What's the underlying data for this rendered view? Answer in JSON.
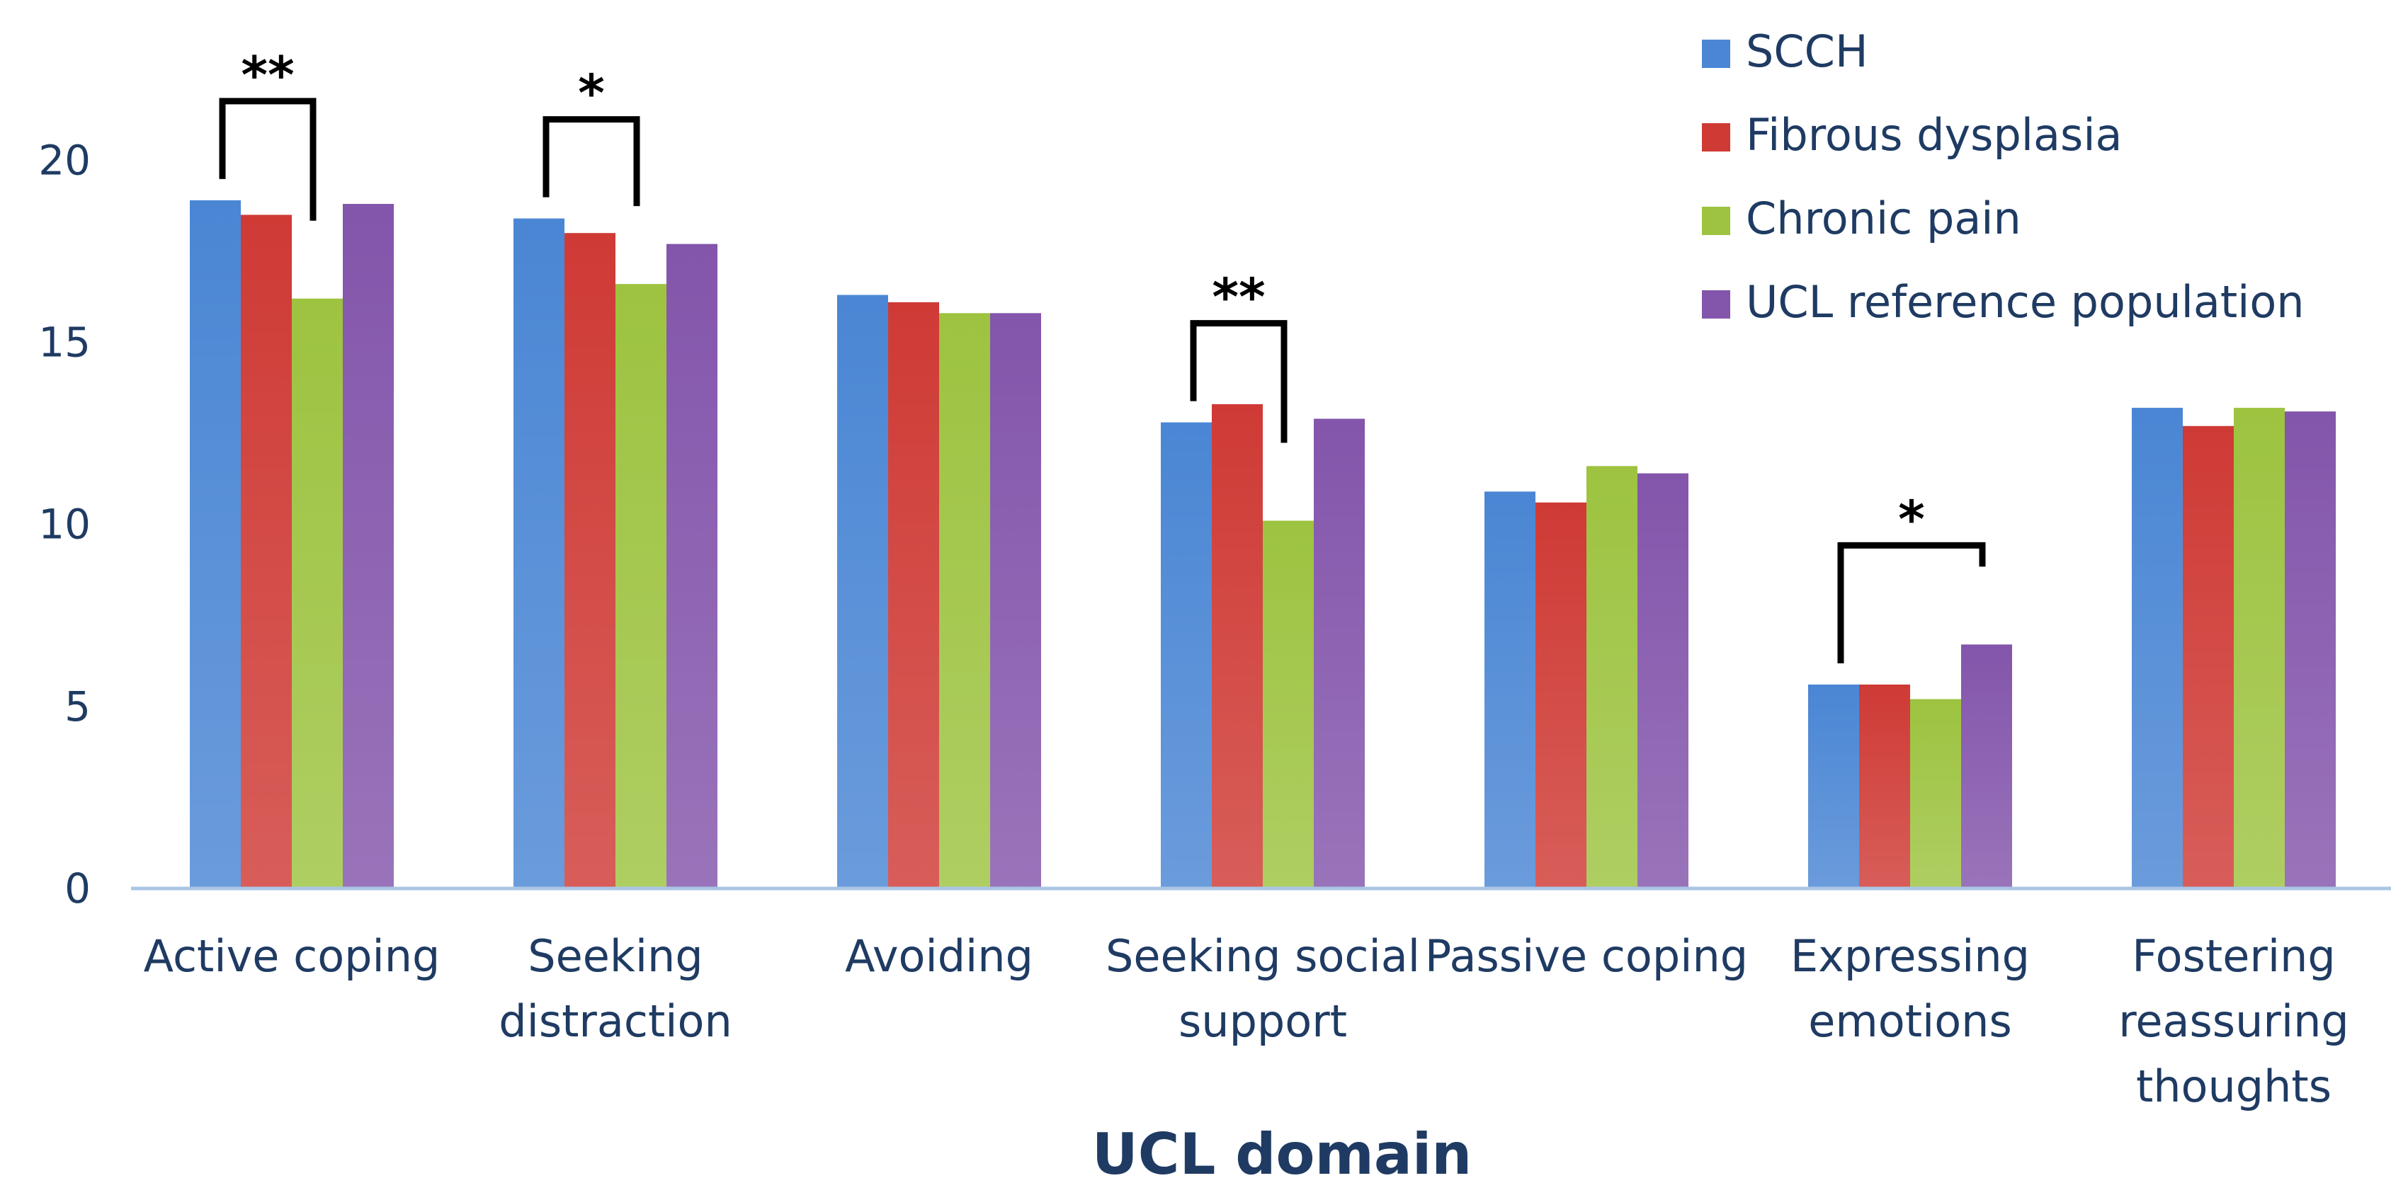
{
  "chart_data": {
    "type": "bar",
    "title": "",
    "xlabel": "UCL domain",
    "ylabel": "",
    "ylim": [
      0,
      23
    ],
    "yticks": [
      0,
      5,
      10,
      15,
      20
    ],
    "grid": false,
    "legend_position": "top-right",
    "categories": [
      [
        "Active coping"
      ],
      [
        "Seeking",
        "distraction"
      ],
      [
        "Avoiding"
      ],
      [
        "Seeking social",
        "support"
      ],
      [
        "Passive coping"
      ],
      [
        "Expressing",
        "emotions"
      ],
      [
        "Fostering",
        "reassuring",
        "thoughts"
      ]
    ],
    "series": [
      {
        "name": "SCCH",
        "color": "#4a86d4",
        "values": [
          18.9,
          18.4,
          16.3,
          12.8,
          10.9,
          5.6,
          13.2
        ]
      },
      {
        "name": "Fibrous dysplasia",
        "color": "#cf3a35",
        "values": [
          18.5,
          18.0,
          16.1,
          13.3,
          10.6,
          5.6,
          12.7
        ]
      },
      {
        "name": "Chronic pain",
        "color": "#9dc340",
        "values": [
          16.2,
          16.6,
          15.8,
          10.1,
          11.6,
          5.2,
          13.2
        ]
      },
      {
        "name": "UCL reference population",
        "color": "#8355ab",
        "values": [
          18.8,
          17.7,
          15.8,
          12.9,
          11.4,
          6.7,
          13.1
        ]
      }
    ],
    "significance": [
      {
        "category": 0,
        "from_series": 0,
        "to_series": 2,
        "label": "**"
      },
      {
        "category": 1,
        "from_series": 0,
        "to_series": 2,
        "label": "*"
      },
      {
        "category": 3,
        "from_series": 0,
        "to_series": 2,
        "label": "**"
      },
      {
        "category": 5,
        "from_series": 0,
        "to_series": 3,
        "label": "*"
      }
    ]
  }
}
